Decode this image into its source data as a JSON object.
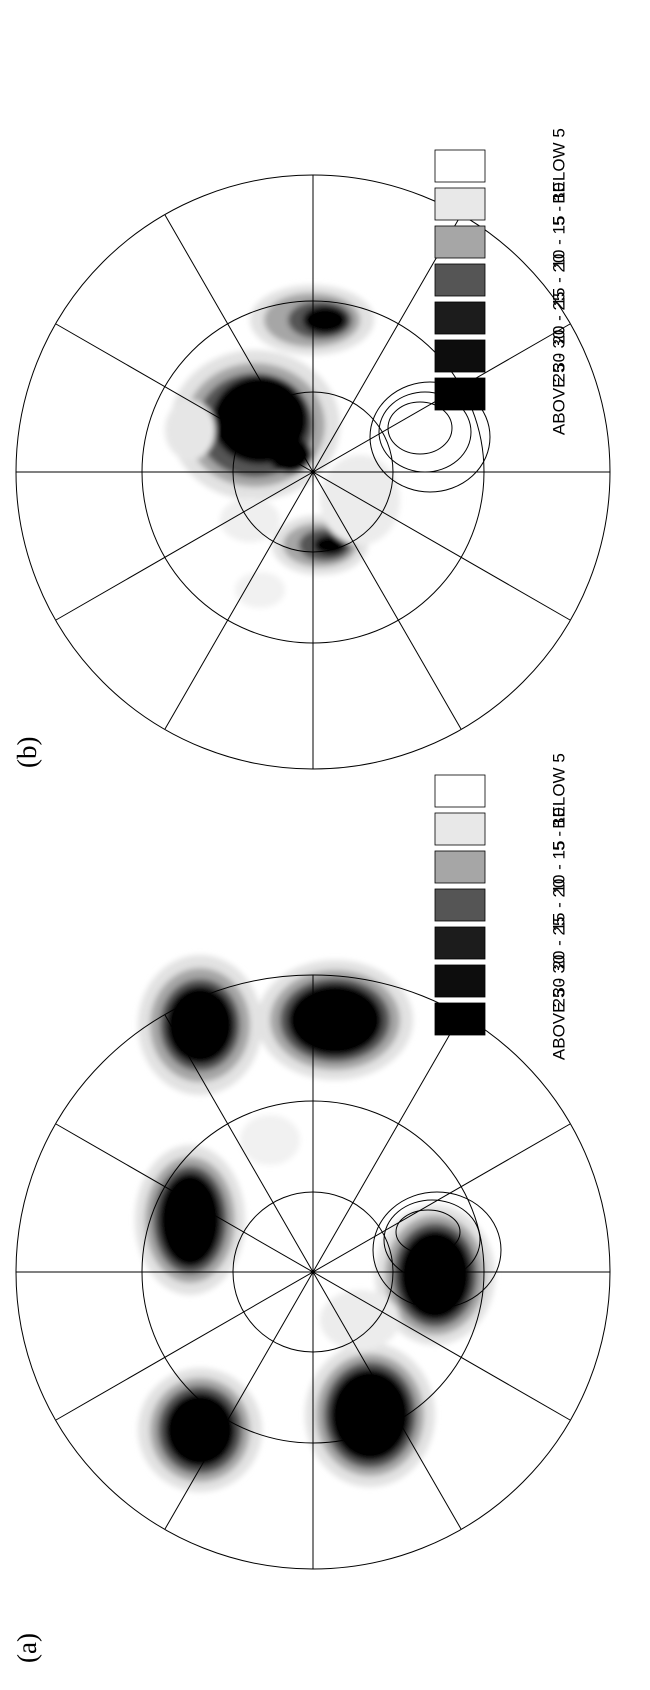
{
  "panels": [
    {
      "label": "(a)",
      "legend": [
        {
          "label": "ABOVE   30",
          "color": "#000000"
        },
        {
          "label": "25 - 30",
          "color": "#0d0d0d"
        },
        {
          "label": "20 - 25",
          "color": "#1c1c1c"
        },
        {
          "label": "15 - 20",
          "color": "#555555"
        },
        {
          "label": "10 - 15",
          "color": "#a6a6a6"
        },
        {
          "label": "5 - 10",
          "color": "#e8e8e8"
        },
        {
          "label": "BELOW    5",
          "color": "#ffffff"
        }
      ]
    },
    {
      "label": "(b)",
      "legend": [
        {
          "label": "ABOVE   30",
          "color": "#000000"
        },
        {
          "label": "25 - 30",
          "color": "#0d0d0d"
        },
        {
          "label": "20 - 25",
          "color": "#1c1c1c"
        },
        {
          "label": "15 - 20",
          "color": "#555555"
        },
        {
          "label": "10 - 15",
          "color": "#a6a6a6"
        },
        {
          "label": "5 - 10",
          "color": "#e8e8e8"
        },
        {
          "label": "BELOW    5",
          "color": "#ffffff"
        }
      ]
    }
  ]
}
